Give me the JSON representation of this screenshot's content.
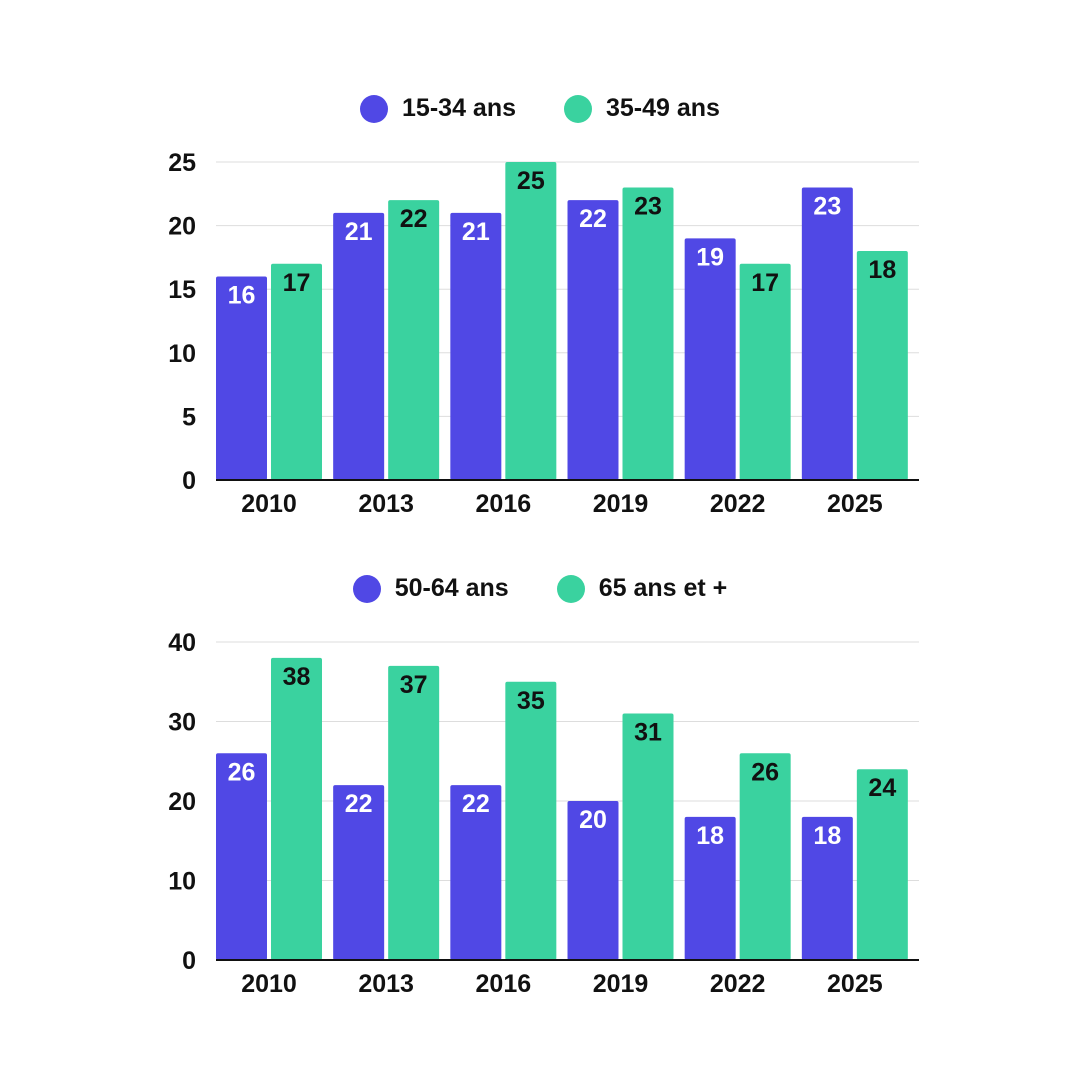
{
  "colors": {
    "series_a": "#5048E5",
    "series_b": "#3AD29F",
    "grid": "#dddddd",
    "axis": "#111111",
    "label_on_a": "#ffffff",
    "label_on_b": "#111111"
  },
  "chart_data": [
    {
      "type": "bar",
      "categories": [
        "2010",
        "2013",
        "2016",
        "2019",
        "2022",
        "2025"
      ],
      "series": [
        {
          "name": "15-34 ans",
          "values": [
            16,
            21,
            21,
            22,
            19,
            23
          ]
        },
        {
          "name": "35-49 ans",
          "values": [
            17,
            22,
            25,
            23,
            17,
            18
          ]
        }
      ],
      "ylim": [
        0,
        25
      ],
      "yticks": [
        0,
        5,
        10,
        15,
        20,
        25
      ],
      "grid": true,
      "legend": "top-center"
    },
    {
      "type": "bar",
      "categories": [
        "2010",
        "2013",
        "2016",
        "2019",
        "2022",
        "2025"
      ],
      "series": [
        {
          "name": "50-64 ans",
          "values": [
            26,
            22,
            22,
            20,
            18,
            18
          ]
        },
        {
          "name": "65 ans et +",
          "values": [
            38,
            37,
            35,
            31,
            26,
            24
          ]
        }
      ],
      "ylim": [
        0,
        40
      ],
      "yticks": [
        0,
        10,
        20,
        30,
        40
      ],
      "grid": true,
      "legend": "top-center"
    }
  ]
}
